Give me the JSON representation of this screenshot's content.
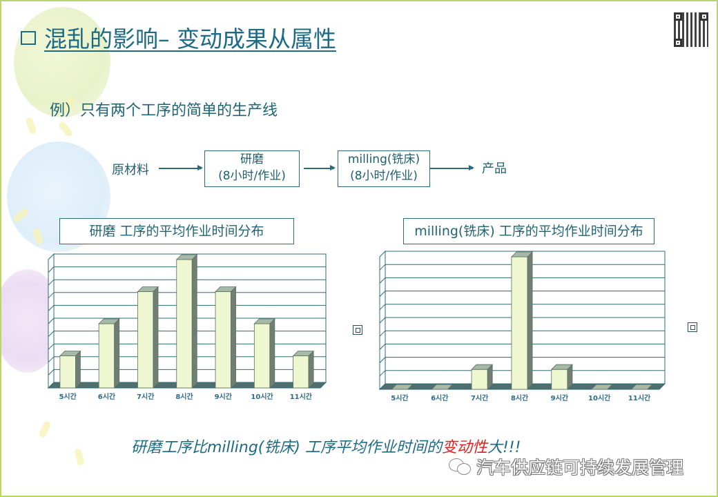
{
  "slide": {
    "title": "混乱的影响– 变动成果从属性",
    "subtitle": "例）只有两个工序的简单的生产线",
    "flow": {
      "input": "原材料",
      "step1_line1": "研磨",
      "step1_line2": "(8小时/作业)",
      "step2_line1": "milling(铣床)",
      "step2_line2": "(8小时/作业)",
      "output": "产品"
    },
    "conclusion_prefix": "研磨工序比milling(铣床) 工序平均作业时间的",
    "conclusion_highlight": "变动性",
    "conclusion_suffix": "大!!!",
    "watermark": "汽车供应链可持续发展管理",
    "colors": {
      "title": "#1c6a84",
      "highlight": "#e02020",
      "bar_front": "#eef7d0",
      "bar_side": "#6f7f74",
      "bar_top": "#a6b8a6",
      "grid": "#2b6a78",
      "border": "#b8d46a"
    }
  },
  "chart_data": [
    {
      "type": "bar",
      "title": "研磨 工序的平均作业时间分布",
      "categories": [
        "5시간",
        "6시간",
        "7시간",
        "8시간",
        "9시간",
        "10시간",
        "11시간"
      ],
      "values": [
        2.5,
        5,
        7.5,
        10,
        7.5,
        5,
        2.5
      ],
      "xlabel": "",
      "ylabel": "",
      "ylim": [
        0,
        10
      ],
      "grid": true,
      "gridlines": 10,
      "style": "3d-column",
      "legend": "none"
    },
    {
      "type": "bar",
      "title": "milling(铣床) 工序的平均作业时间分布",
      "categories": [
        "5시간",
        "6시간",
        "7시간",
        "8시간",
        "9시간",
        "10시간",
        "11시간"
      ],
      "values": [
        0,
        0,
        1.5,
        10,
        1.5,
        0,
        0
      ],
      "xlabel": "",
      "ylabel": "",
      "ylim": [
        0,
        10
      ],
      "grid": true,
      "gridlines": 10,
      "style": "3d-column",
      "legend": "none"
    }
  ]
}
